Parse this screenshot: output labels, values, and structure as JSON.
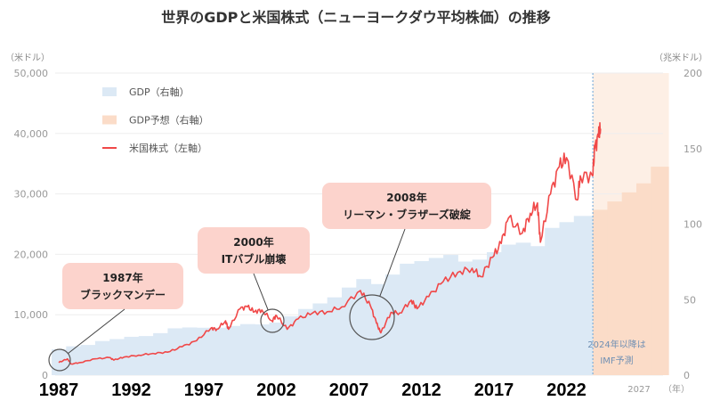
{
  "chart_data": {
    "type": "area+line",
    "title": "世界のGDPと米国株式（ニューヨークダウ平均株価）の推移",
    "left_axis": {
      "unit": "（米ドル）",
      "range": [
        0,
        50000
      ],
      "ticks": [
        "0",
        "10,000",
        "20,000",
        "30,000",
        "40,000",
        "50,000"
      ]
    },
    "right_axis": {
      "unit": "（兆米ドル）",
      "range": [
        0,
        200
      ],
      "ticks": [
        "0",
        "50",
        "100",
        "150",
        "200"
      ]
    },
    "x_axis": {
      "range": [
        1987,
        2029
      ],
      "ticks": [
        "1987",
        "1992",
        "1997",
        "2002",
        "2007",
        "2012",
        "2017",
        "2022"
      ],
      "extra_tick": "2027",
      "unit": "（年）"
    },
    "grid": true,
    "legend": {
      "placement": "top-left",
      "items": [
        {
          "label": "GDP（右軸）",
          "color": "#dce9f5"
        },
        {
          "label": "GDP予想（右軸）",
          "color": "#fbdcc8"
        },
        {
          "label": "米国株式（左軸）",
          "color": "#f04848"
        }
      ]
    },
    "series": [
      {
        "name": "GDP（右軸）",
        "axis": "right",
        "years": [
          1987,
          1988,
          1989,
          1990,
          1991,
          1992,
          1993,
          1994,
          1995,
          1996,
          1997,
          1998,
          1999,
          2000,
          2001,
          2002,
          2003,
          2004,
          2005,
          2006,
          2007,
          2008,
          2009,
          2010,
          2011,
          2012,
          2013,
          2014,
          2015,
          2016,
          2017,
          2018,
          2019,
          2020,
          2021,
          2022,
          2023
        ],
        "values": [
          17.1,
          19.1,
          20.0,
          22.6,
          23.9,
          25.4,
          25.9,
          27.8,
          31.0,
          31.6,
          31.4,
          31.4,
          32.6,
          33.8,
          33.6,
          34.8,
          39.0,
          43.8,
          47.5,
          51.5,
          58.0,
          63.6,
          60.3,
          66.6,
          73.8,
          75.5,
          77.6,
          79.6,
          75.2,
          76.5,
          81.4,
          86.4,
          87.7,
          85.4,
          97.5,
          101.3,
          105.4
        ]
      },
      {
        "name": "GDP予想（右軸）",
        "axis": "right",
        "years": [
          2024,
          2025,
          2026,
          2027,
          2028
        ],
        "values": [
          109.5,
          115,
          121,
          127,
          138
        ]
      },
      {
        "name": "米国株式（左軸）",
        "axis": "left",
        "x": [
          1987.0,
          1987.6,
          1987.85,
          1988.5,
          1989.5,
          1990.5,
          1990.8,
          1991.5,
          1992.5,
          1993.5,
          1994.5,
          1995.5,
          1996.5,
          1997.5,
          1997.9,
          1998.5,
          1998.7,
          1999.5,
          2000.0,
          2000.5,
          2001.0,
          2001.7,
          2002.0,
          2002.75,
          2003.5,
          2004.5,
          2005.5,
          2006.5,
          2007.8,
          2008.5,
          2008.9,
          2009.2,
          2009.9,
          2010.5,
          2011.3,
          2011.7,
          2012.5,
          2013.5,
          2014.5,
          2015.5,
          2016.1,
          2016.9,
          2017.5,
          2018.0,
          2018.95,
          2019.5,
          2020.0,
          2020.2,
          2020.9,
          2021.5,
          2022.0,
          2022.75,
          2022.95,
          2023.8,
          2023.95,
          2024.2,
          2024.35
        ],
        "values": [
          2100,
          2700,
          1850,
          2100,
          2700,
          2900,
          2500,
          3000,
          3300,
          3600,
          3800,
          4700,
          5700,
          7800,
          7600,
          9000,
          7600,
          11000,
          11300,
          10500,
          10800,
          9000,
          9900,
          7600,
          9300,
          10300,
          10500,
          11300,
          14000,
          11400,
          8600,
          7000,
          10400,
          10300,
          12400,
          11000,
          13000,
          15500,
          17000,
          17700,
          16300,
          19500,
          21800,
          26000,
          23500,
          26800,
          28500,
          22000,
          30000,
          34500,
          36000,
          29000,
          33000,
          33000,
          37500,
          39500,
          40800
        ]
      }
    ],
    "annotations": [
      {
        "label": [
          "1987年",
          "ブラックマンデー"
        ],
        "x": 1987.1,
        "y": 2100
      },
      {
        "label": [
          "2000年",
          "ITバブル崩壊"
        ],
        "x": 2002.0,
        "y": 9000
      },
      {
        "label": [
          "2008年",
          "リーマン・ブラザーズ破綻"
        ],
        "x": 2008.9,
        "y": 9500
      }
    ],
    "forecast_note": [
      "2024年以降は",
      "IMF予測"
    ],
    "forecast_start": 2024,
    "colors": {
      "gdp": "#dce9f5",
      "forecast_bg": "#fdefe5",
      "forecast_bar": "#fbdcc8",
      "stock": "#f04848",
      "callout": "#fcd3cc"
    }
  }
}
